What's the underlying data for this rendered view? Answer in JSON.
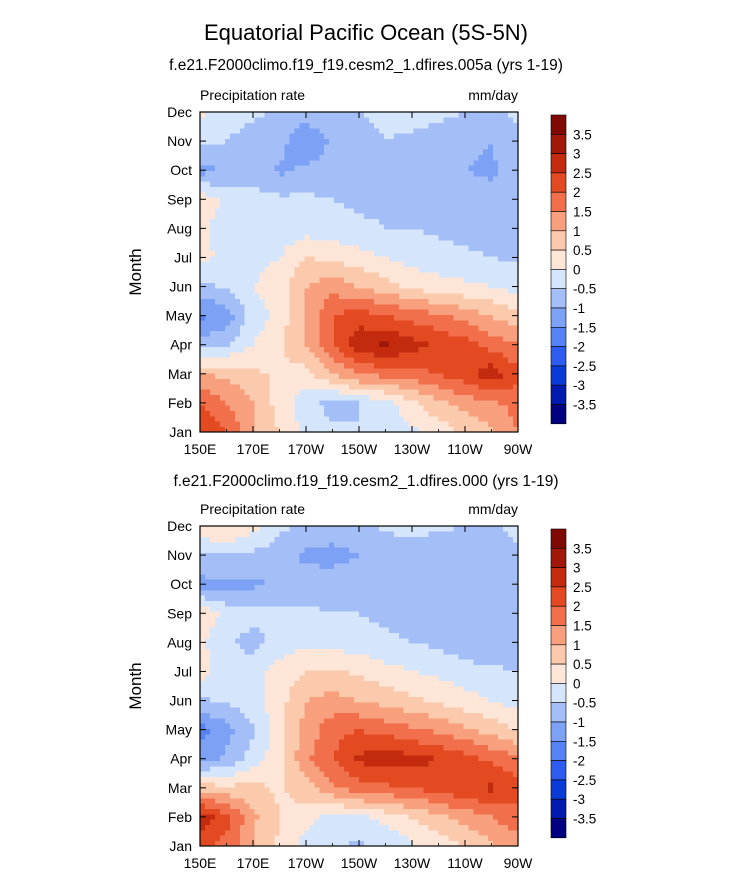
{
  "figure_title": "Equatorial Pacific Ocean (5S-5N)",
  "chart_data": [
    {
      "type": "heatmap",
      "title": "f.e21.F2000climo.f19_f19.cesm2_1.dfires.005a (yrs 1-19)",
      "left_label": "Precipitation rate",
      "right_label": "mm/day",
      "ylabel": "Month",
      "x_ticks": [
        "150E",
        "170E",
        "170W",
        "150W",
        "130W",
        "110W",
        "90W"
      ],
      "y_ticks": [
        "Jan",
        "Feb",
        "Mar",
        "Apr",
        "May",
        "Jun",
        "Jul",
        "Aug",
        "Sep",
        "Oct",
        "Nov",
        "Dec"
      ],
      "grid_lon": [
        "150E",
        "160E",
        "170E",
        "180",
        "170W",
        "160W",
        "150W",
        "140W",
        "130W",
        "120W",
        "110W",
        "100W",
        "90W"
      ],
      "values": [
        [
          2.5,
          2.0,
          1.0,
          0.5,
          -0.2,
          -0.4,
          -0.5,
          -0.3,
          -0.1,
          0.2,
          0.6,
          0.9,
          1.5
        ],
        [
          2.0,
          1.5,
          1.0,
          0.3,
          -0.3,
          -0.7,
          -0.5,
          -0.2,
          0.4,
          0.9,
          1.2,
          1.4,
          1.7
        ],
        [
          1.0,
          0.9,
          0.6,
          0.4,
          0.3,
          1.0,
          1.5,
          1.7,
          1.8,
          2.0,
          2.3,
          2.8,
          2.2
        ],
        [
          -0.8,
          -0.5,
          0.0,
          0.4,
          1.0,
          2.0,
          2.8,
          3.1,
          2.7,
          2.4,
          2.2,
          1.8,
          1.5
        ],
        [
          -1.6,
          -1.3,
          -0.3,
          0.2,
          1.1,
          2.0,
          2.3,
          2.0,
          1.8,
          1.6,
          1.3,
          1.0,
          0.7
        ],
        [
          -0.7,
          -0.4,
          0.0,
          0.3,
          1.0,
          1.3,
          1.0,
          0.7,
          0.4,
          0.2,
          0.1,
          0.0,
          -0.2
        ],
        [
          0.2,
          -0.2,
          -0.2,
          0.0,
          0.5,
          0.4,
          0.2,
          0.0,
          -0.2,
          -0.3,
          -0.4,
          -0.5,
          -0.6
        ],
        [
          0.1,
          -0.2,
          -0.3,
          -0.3,
          -0.2,
          -0.3,
          -0.4,
          -0.5,
          -0.5,
          -0.6,
          -0.7,
          -0.7,
          -0.8
        ],
        [
          0.3,
          -0.1,
          -0.3,
          -0.4,
          -0.4,
          -0.5,
          -0.6,
          -0.6,
          -0.7,
          -0.7,
          -0.6,
          -0.8,
          -0.9
        ],
        [
          -1.2,
          -0.9,
          -0.8,
          -1.1,
          -0.9,
          -0.7,
          -0.6,
          -0.8,
          -0.9,
          -0.7,
          -1.0,
          -1.1,
          -0.7
        ],
        [
          -0.4,
          -0.5,
          -0.7,
          -0.8,
          -1.5,
          -0.9,
          -0.7,
          -0.5,
          -0.6,
          -0.7,
          -0.9,
          -1.0,
          -0.6
        ],
        [
          0.1,
          -0.3,
          -0.4,
          -0.6,
          -0.7,
          -0.6,
          -0.5,
          -0.4,
          -0.3,
          -0.4,
          -0.5,
          -0.6,
          -0.4
        ]
      ]
    },
    {
      "type": "heatmap",
      "title": "f.e21.F2000climo.f19_f19.cesm2_1.dfires.000 (yrs 1-19)",
      "left_label": "Precipitation rate",
      "right_label": "mm/day",
      "ylabel": "Month",
      "x_ticks": [
        "150E",
        "170E",
        "170W",
        "150W",
        "130W",
        "110W",
        "90W"
      ],
      "y_ticks": [
        "Jan",
        "Feb",
        "Mar",
        "Apr",
        "May",
        "Jun",
        "Jul",
        "Aug",
        "Sep",
        "Oct",
        "Nov",
        "Dec"
      ],
      "grid_lon": [
        "150E",
        "160E",
        "170E",
        "180",
        "170W",
        "160W",
        "150W",
        "140W",
        "130W",
        "120W",
        "110W",
        "100W",
        "90W"
      ],
      "values": [
        [
          2.2,
          1.8,
          1.0,
          0.4,
          -0.2,
          -0.4,
          -0.6,
          -0.4,
          -0.1,
          0.2,
          0.5,
          0.9,
          1.3
        ],
        [
          2.8,
          2.2,
          1.1,
          0.5,
          0.2,
          -0.2,
          -0.1,
          0.2,
          0.5,
          0.9,
          1.2,
          1.5,
          1.8
        ],
        [
          0.8,
          0.6,
          0.7,
          0.4,
          0.8,
          1.4,
          1.8,
          1.9,
          2.0,
          2.2,
          2.4,
          2.6,
          2.2
        ],
        [
          -1.3,
          -0.9,
          -0.3,
          0.4,
          1.4,
          2.0,
          2.6,
          2.8,
          2.7,
          2.5,
          2.2,
          1.9,
          1.6
        ],
        [
          -1.7,
          -1.2,
          -0.6,
          0.3,
          1.2,
          1.8,
          2.0,
          1.8,
          1.6,
          1.4,
          1.1,
          0.8,
          0.5
        ],
        [
          -0.6,
          -0.4,
          -0.2,
          0.3,
          1.0,
          1.2,
          1.0,
          0.8,
          0.6,
          0.4,
          0.2,
          0.0,
          -0.2
        ],
        [
          0.3,
          -0.3,
          -0.2,
          0.2,
          0.5,
          0.6,
          0.4,
          0.2,
          0.0,
          -0.1,
          -0.3,
          -0.4,
          -0.5
        ],
        [
          0.1,
          -0.4,
          -0.7,
          -0.3,
          -0.1,
          -0.2,
          -0.3,
          -0.4,
          -0.5,
          -0.6,
          -0.8,
          -0.9,
          -0.7
        ],
        [
          0.4,
          -0.2,
          -0.3,
          -0.4,
          -0.4,
          -0.5,
          -0.5,
          -0.6,
          -0.7,
          -0.6,
          -0.5,
          -0.7,
          -0.9
        ],
        [
          -1.2,
          -1.1,
          -1.1,
          -0.9,
          -0.8,
          -0.7,
          -0.7,
          -0.8,
          -0.9,
          -0.6,
          -0.8,
          -1.0,
          -0.7
        ],
        [
          -0.5,
          -0.5,
          -0.6,
          -0.8,
          -1.1,
          -1.2,
          -1.0,
          -0.9,
          -0.8,
          -0.9,
          -1.0,
          -1.0,
          -0.6
        ],
        [
          0.3,
          0.6,
          0.2,
          -0.4,
          -0.6,
          -0.7,
          -0.6,
          -0.4,
          -0.3,
          -0.4,
          -0.5,
          -0.6,
          -0.3
        ]
      ]
    }
  ],
  "colorbar": {
    "levels": [
      "3.5",
      "3",
      "2.5",
      "2",
      "1.5",
      "1",
      "0.5",
      "0",
      "-0.5",
      "-1",
      "-1.5",
      "-2",
      "-2.5",
      "-3",
      "-3.5"
    ],
    "thresholds": [
      -3.5,
      -3,
      -2.5,
      -2,
      -1.5,
      -1,
      -0.5,
      0,
      0.5,
      1,
      1.5,
      2,
      2.5,
      3,
      3.5
    ],
    "colors": [
      "#000080",
      "#001ab0",
      "#0a3ad8",
      "#2e5cf0",
      "#5583f5",
      "#7da1f5",
      "#a4bef8",
      "#d4e5fc",
      "#fde6d8",
      "#fbc9ab",
      "#f8a07e",
      "#f26f4b",
      "#e34a22",
      "#c42a0e",
      "#a1170a",
      "#7f0a04"
    ]
  }
}
